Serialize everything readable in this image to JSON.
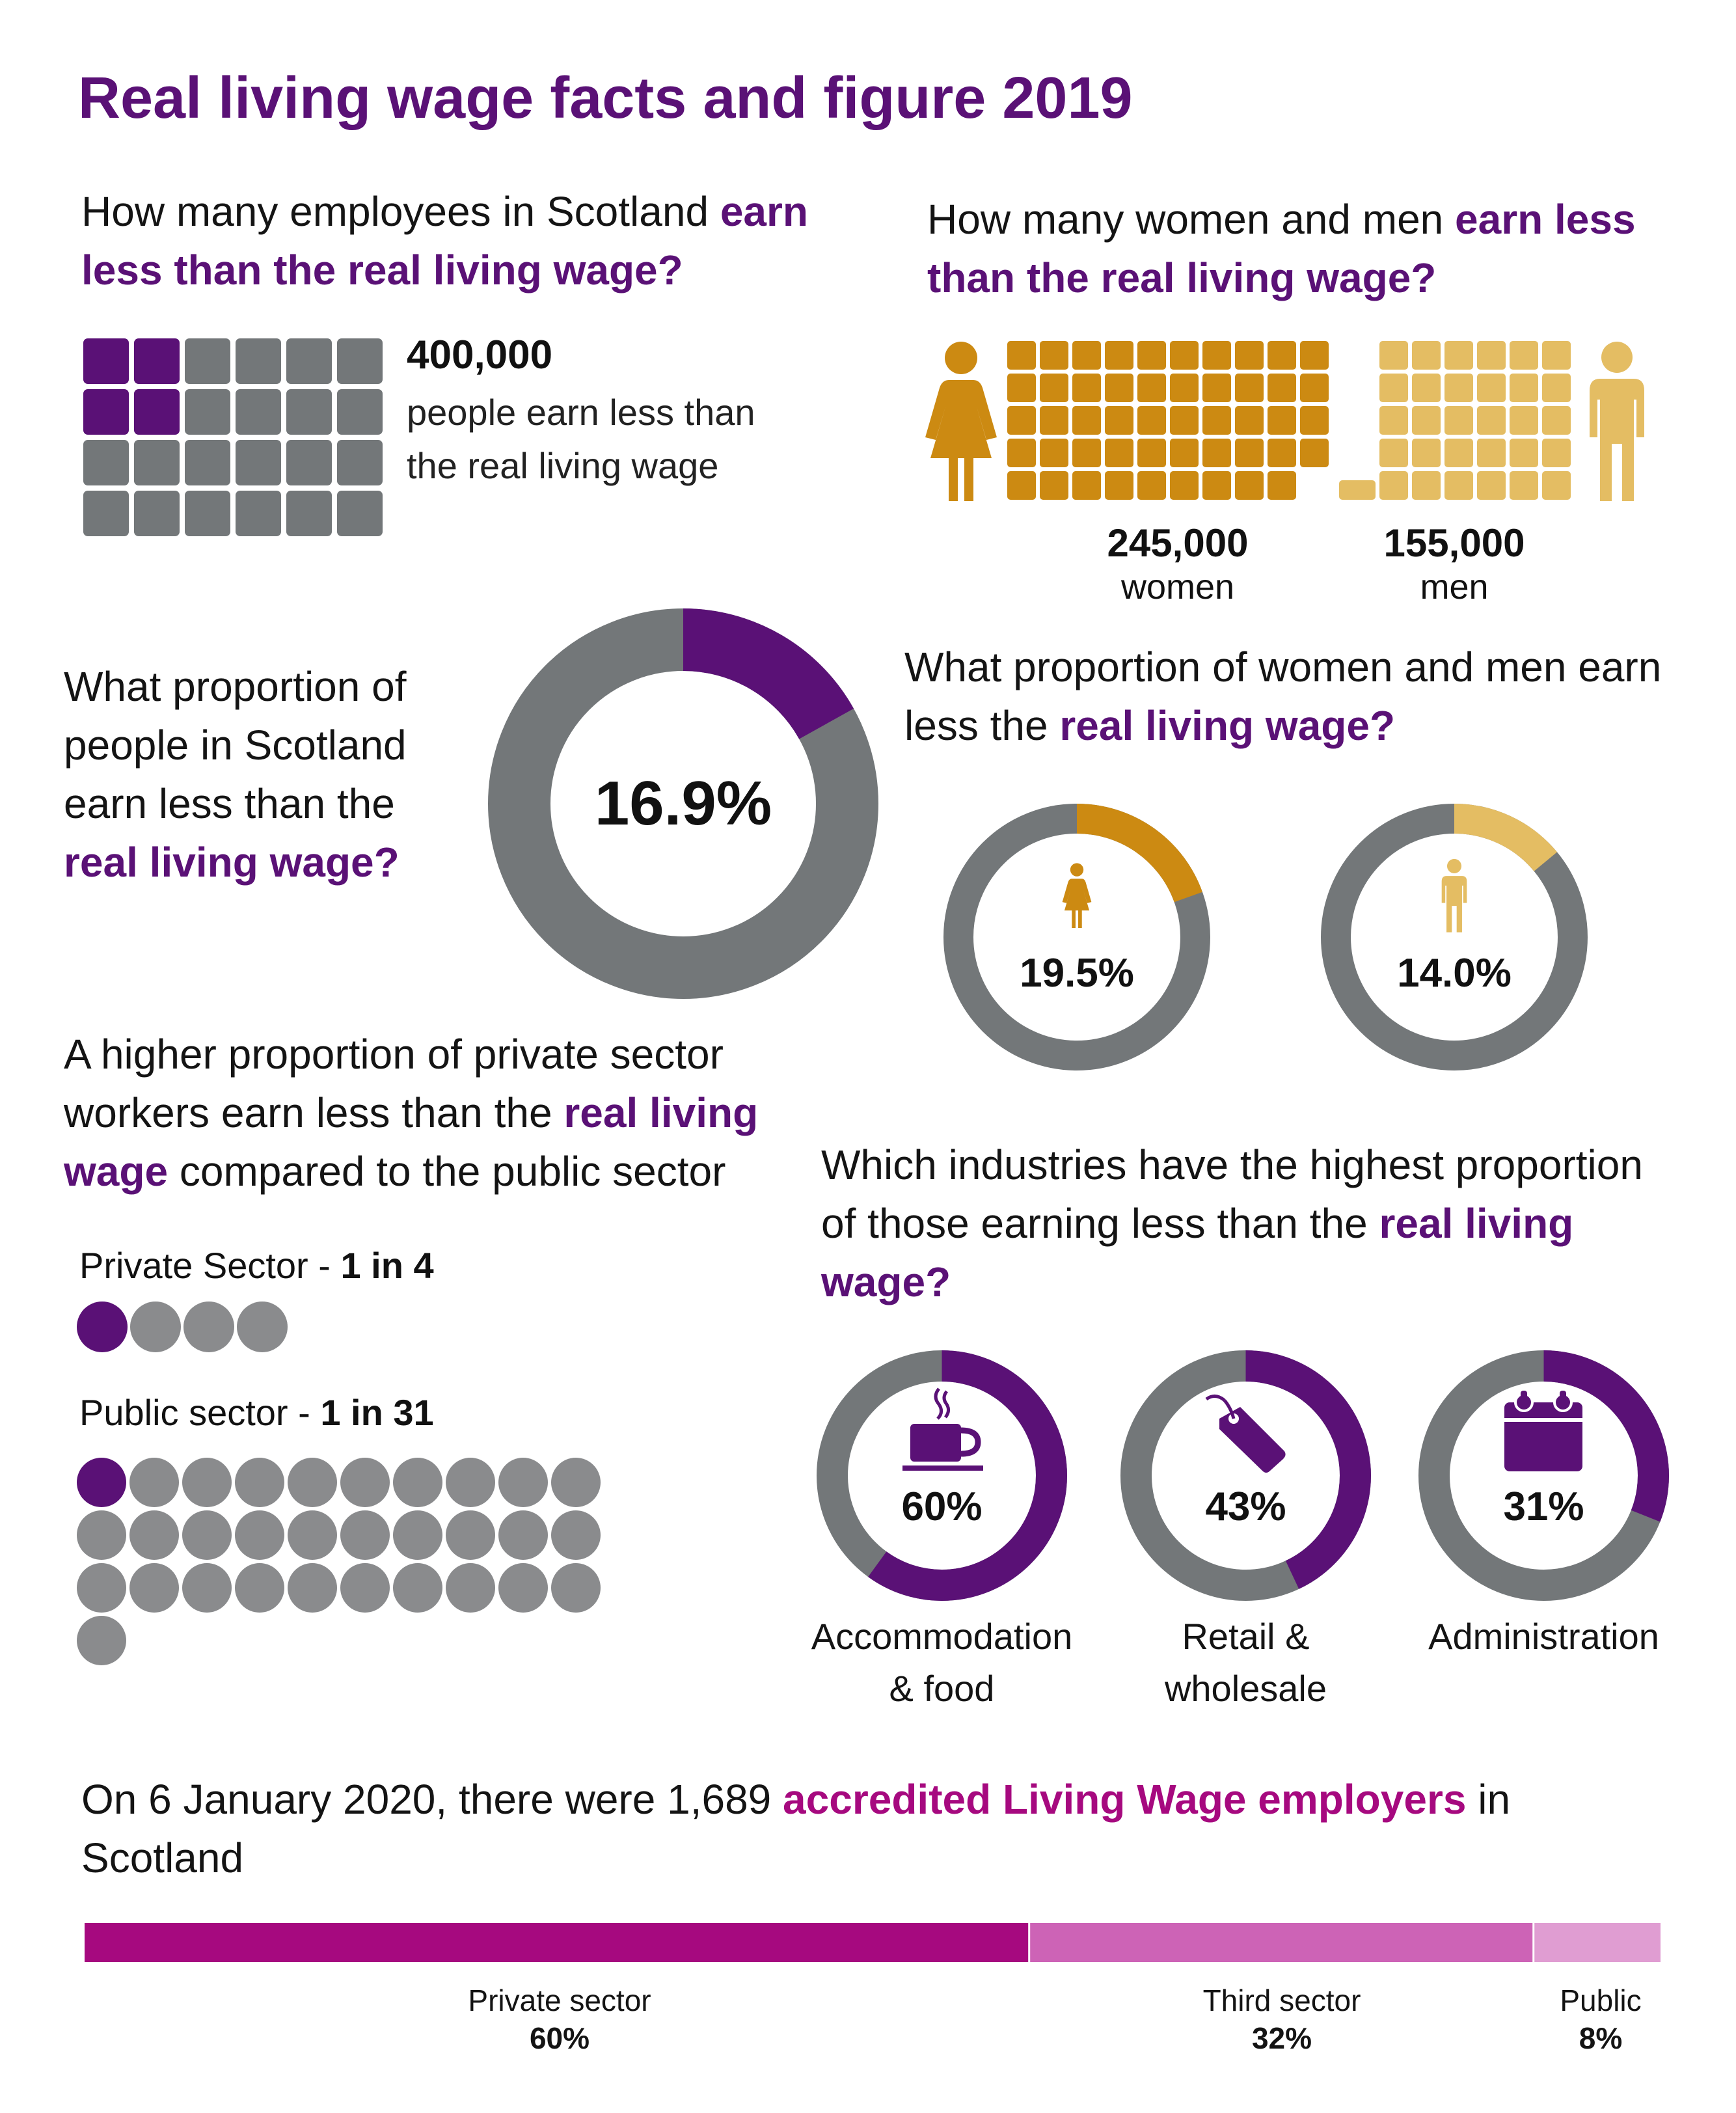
{
  "title": "Real living wage facts and figure 2019",
  "colors": {
    "purple": "#5a1176",
    "grey": "#737779",
    "dot_grey": "#8a8b8d",
    "women_gold": "#cc8a12",
    "men_gold": "#e4bd63",
    "magenta": "#a6097f",
    "magenta_mid": "#cd63b6",
    "magenta_light": "#e09dd2"
  },
  "employees": {
    "question_plain": "How many employees in Scotland ",
    "question_highlight": "earn less than the real living wage?",
    "count": "400,000",
    "desc_line1": "people earn less than",
    "desc_line2": "the real living wage"
  },
  "gender_count": {
    "question_plain": "How many women and men ",
    "question_highlight": "earn less than the real living wage?",
    "women_value": "245,000",
    "women_label": "women",
    "men_value": "155,000",
    "men_label": "men",
    "women_icon": "woman-icon",
    "men_icon": "man-icon"
  },
  "proportion": {
    "q_line1": "What proportion of",
    "q_line2": "people in Scotland",
    "q_line3": "earn less than the",
    "q_highlight": "real living wage?",
    "pct_label": "16.9%"
  },
  "gender_proportion": {
    "question_plain": "What proportion of women and men earn less the ",
    "question_highlight": "real living wage?",
    "women_pct_label": "19.5%",
    "men_pct_label": "14.0%"
  },
  "sector": {
    "q_part1": "A higher proportion of private sector workers earn less than the ",
    "q_highlight1": "real living",
    "q_part2": " ",
    "q_highlight2": "wage",
    "q_part3": " compared to the public sector",
    "private_label": "Private Sector - ",
    "private_ratio": "1 in 4",
    "public_label": "Public sector - ",
    "public_ratio": "1 in 31"
  },
  "industries": {
    "question_plain": "Which industries have the highest proportion of those earning less than the ",
    "question_highlight": "real living wage?",
    "items": [
      {
        "label_line1": "Accommodation",
        "label_line2": "& food",
        "pct_label": "60%",
        "icon": "coffee-cup-icon"
      },
      {
        "label_line1": "Retail &",
        "label_line2": "wholesale",
        "pct_label": "43%",
        "icon": "price-tag-icon"
      },
      {
        "label_line1": "Administration",
        "label_line2": "",
        "pct_label": "31%",
        "icon": "calendar-icon"
      }
    ]
  },
  "employers": {
    "text_plain": "On 6 January 2020, there were 1,689 ",
    "text_highlight": "accredited Living Wage employers",
    "text_end": " in Scotland",
    "segments": [
      {
        "label": "Private sector",
        "pct_label": "60%"
      },
      {
        "label": "Third sector",
        "pct_label": "32%"
      },
      {
        "label": "Public",
        "pct_label": "8%"
      }
    ]
  },
  "chart_data": [
    {
      "type": "waffle",
      "title": "How many employees in Scotland earn less than the real living wage?",
      "total_squares": 24,
      "highlighted_squares": 4,
      "value": 400000
    },
    {
      "type": "waffle",
      "categories": [
        "women",
        "men"
      ],
      "values": [
        245000,
        155000
      ],
      "squares": [
        49,
        31
      ]
    },
    {
      "type": "pie",
      "subtype": "donut",
      "categories": [
        "Earn less than real living wage",
        "Other"
      ],
      "values": [
        16.9,
        83.1
      ]
    },
    {
      "type": "pie",
      "subtype": "donut",
      "categories": [
        "Women earning less",
        "Other"
      ],
      "values": [
        19.5,
        80.5
      ]
    },
    {
      "type": "pie",
      "subtype": "donut",
      "categories": [
        "Men earning less",
        "Other"
      ],
      "values": [
        14.0,
        86.0
      ]
    },
    {
      "type": "pictogram",
      "categories": [
        "Private Sector",
        "Public sector"
      ],
      "ratio_denominators": [
        4,
        31
      ],
      "highlighted": [
        1,
        1
      ]
    },
    {
      "type": "pie",
      "subtype": "donut",
      "categories": [
        "Accommodation & food",
        "Retail & wholesale",
        "Administration"
      ],
      "values": [
        60,
        43,
        31
      ]
    },
    {
      "type": "bar",
      "subtype": "stacked-horizontal",
      "categories": [
        "Private sector",
        "Third sector",
        "Public"
      ],
      "values": [
        60,
        32,
        8
      ]
    }
  ]
}
